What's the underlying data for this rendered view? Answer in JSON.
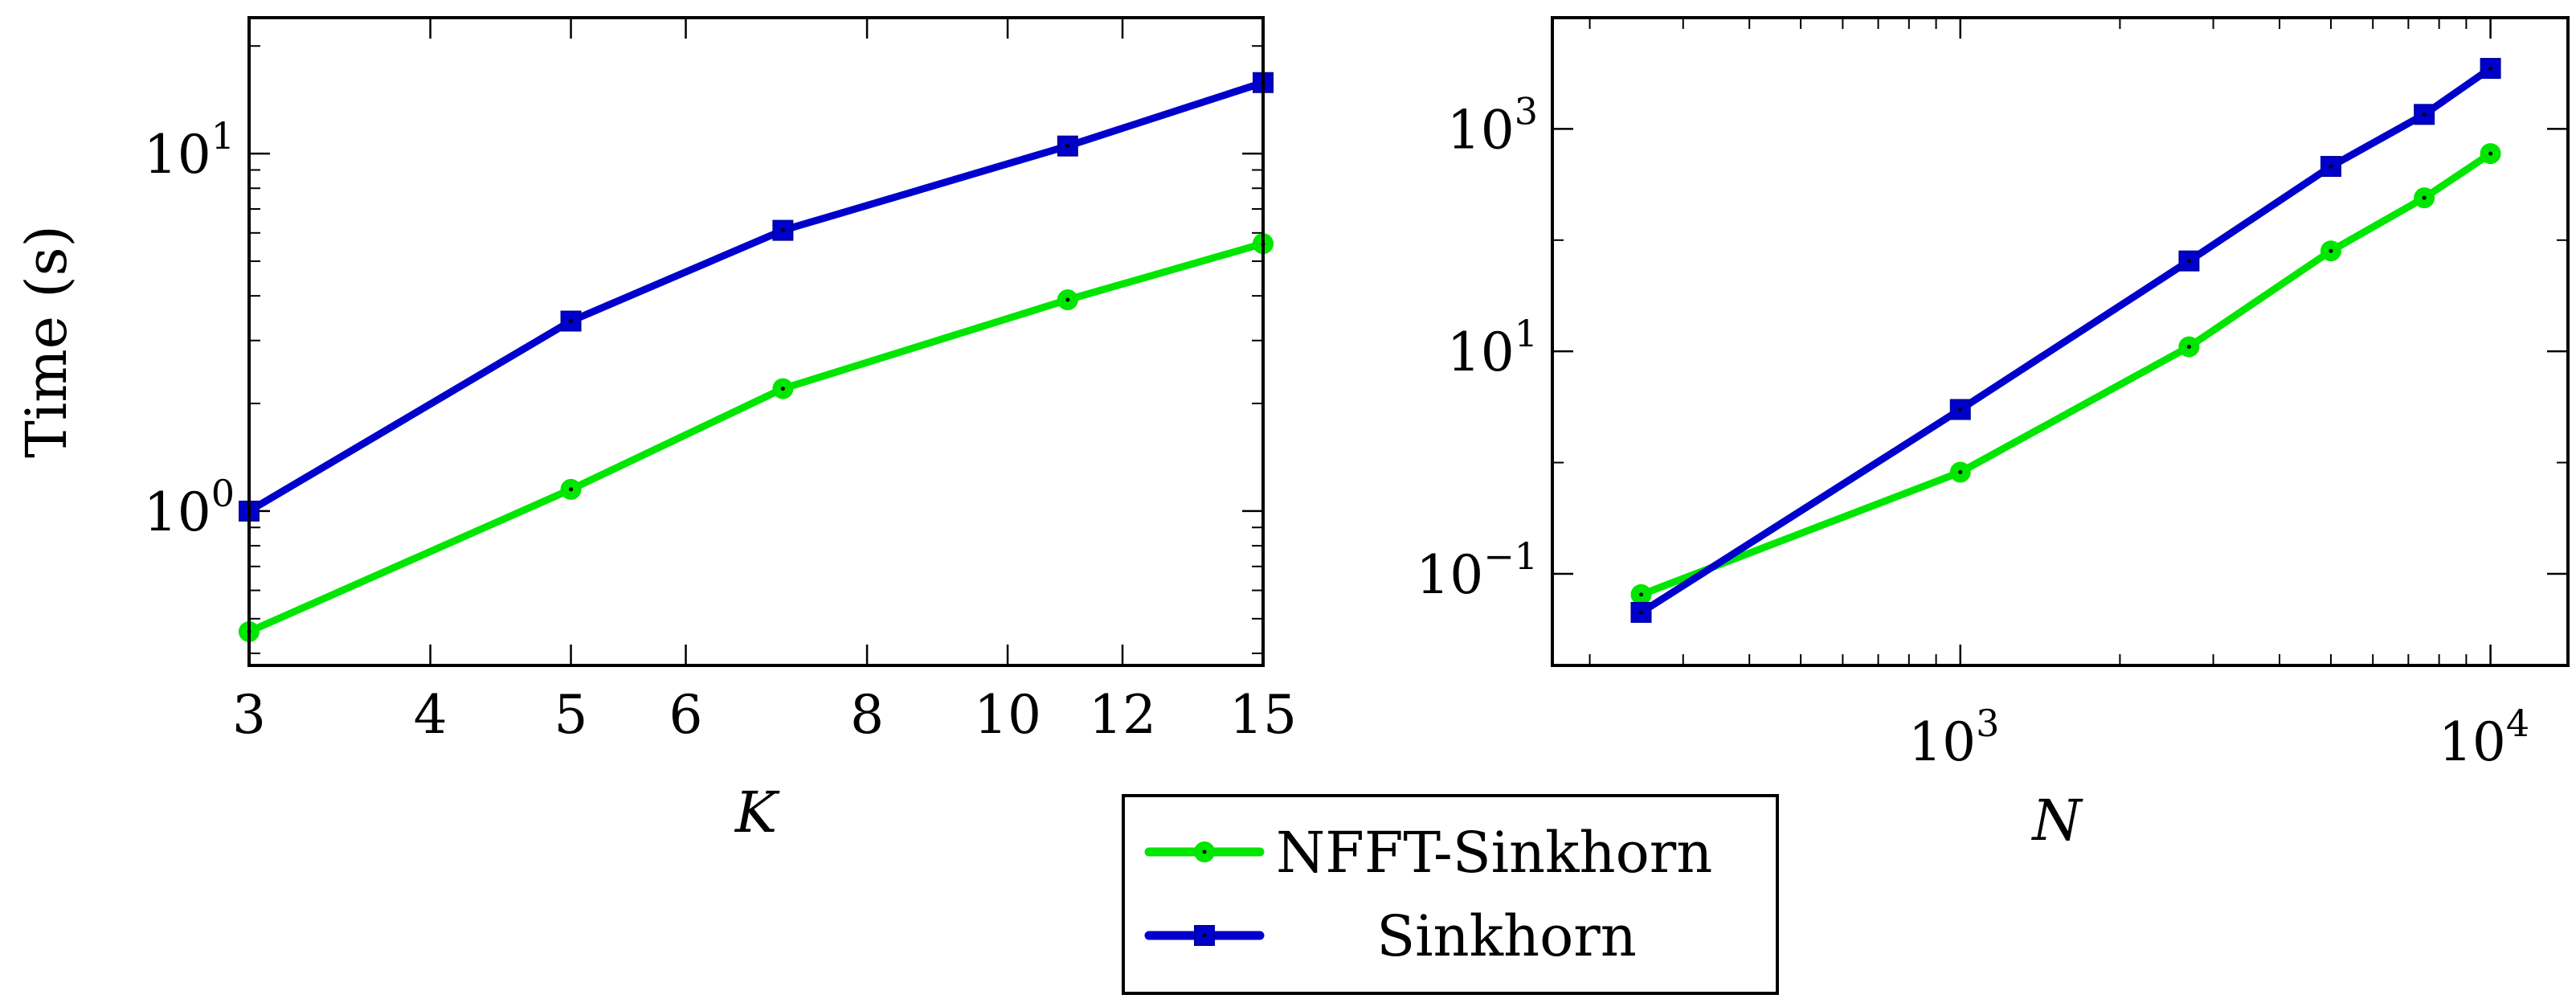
{
  "colors": {
    "nfft": "#00e600",
    "sinkhorn": "#0000cc",
    "frame": "#000000",
    "background": "#ffffff"
  },
  "chart_data": [
    {
      "type": "line",
      "x_scale": "log",
      "y_scale": "log",
      "xlabel": "K",
      "ylabel": "Time (s)",
      "xlim": [
        3,
        15
      ],
      "ylim": [
        0.37,
        24
      ],
      "x_ticks": [
        {
          "value": 3,
          "label": "3"
        },
        {
          "value": 4,
          "label": "4"
        },
        {
          "value": 5,
          "label": "5"
        },
        {
          "value": 6,
          "label": "6"
        },
        {
          "value": 8,
          "label": "8"
        },
        {
          "value": 10,
          "label": "10"
        },
        {
          "value": 12,
          "label": "12"
        },
        {
          "value": 15,
          "label": "15"
        }
      ],
      "y_major": [
        {
          "value": 1,
          "base": "10",
          "exp": "0"
        },
        {
          "value": 10,
          "base": "10",
          "exp": "1"
        }
      ],
      "y_minor": [
        0.4,
        0.5,
        0.6,
        0.7,
        0.8,
        0.9,
        2,
        3,
        4,
        5,
        6,
        7,
        8,
        9,
        20
      ],
      "series": [
        {
          "name": "NFFT-Sinkhorn",
          "marker": "circle",
          "x": [
            3,
            5,
            7,
            11,
            15
          ],
          "y": [
            0.46,
            1.15,
            2.2,
            3.9,
            5.6
          ]
        },
        {
          "name": "Sinkhorn",
          "marker": "square",
          "x": [
            3,
            5,
            7,
            11,
            15
          ],
          "y": [
            1.0,
            3.4,
            6.1,
            10.5,
            15.8
          ]
        }
      ]
    },
    {
      "type": "line",
      "x_scale": "log",
      "y_scale": "log",
      "xlabel": "N",
      "ylabel": "",
      "xlim": [
        170,
        14000
      ],
      "ylim": [
        0.015,
        10000
      ],
      "x_major": [
        {
          "value": 1000,
          "base": "10",
          "exp": "3"
        },
        {
          "value": 10000,
          "base": "10",
          "exp": "4"
        }
      ],
      "x_minor": [
        200,
        300,
        400,
        500,
        600,
        700,
        800,
        900,
        2000,
        3000,
        4000,
        5000,
        6000,
        7000,
        8000,
        9000
      ],
      "y_major": [
        {
          "value": 0.1,
          "base": "10",
          "exp": "−1"
        },
        {
          "value": 10,
          "base": "10",
          "exp": "1"
        },
        {
          "value": 1000,
          "base": "10",
          "exp": "3"
        }
      ],
      "y_minor": [
        1,
        100
      ],
      "series": [
        {
          "name": "NFFT-Sinkhorn",
          "marker": "circle",
          "x": [
            250,
            1000,
            2700,
            5000,
            7500,
            10000
          ],
          "y": [
            0.065,
            0.82,
            11,
            80,
            240,
            600
          ]
        },
        {
          "name": "Sinkhorn",
          "marker": "square",
          "x": [
            250,
            1000,
            2700,
            5000,
            7500,
            10000
          ],
          "y": [
            0.045,
            3.0,
            65,
            460,
            1350,
            3500
          ]
        }
      ]
    }
  ],
  "legend": {
    "placement": "bottom-center",
    "entries": [
      {
        "label": "NFFT-Sinkhorn",
        "marker": "circle"
      },
      {
        "label": "Sinkhorn",
        "marker": "square"
      }
    ]
  }
}
